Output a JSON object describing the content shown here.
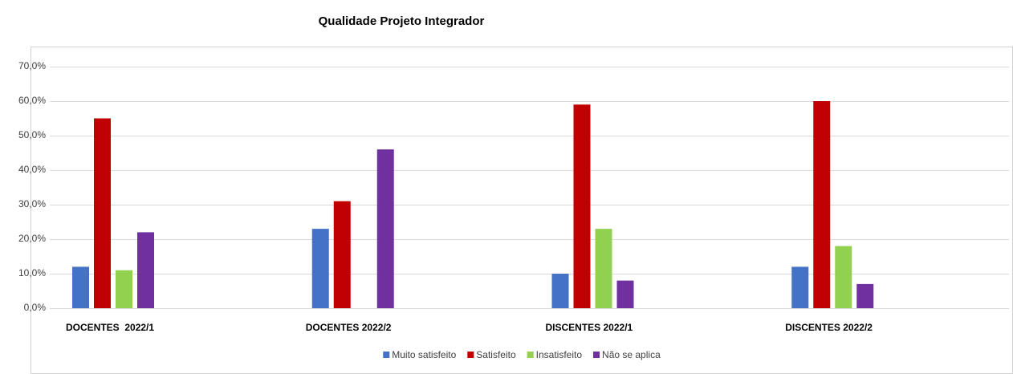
{
  "chart_data": {
    "type": "bar",
    "title": "Qualidade Projeto Integrador",
    "categories": [
      "DOCENTES  2022/1",
      "DOCENTES 2022/2",
      "DISCENTES 2022/1",
      "DISCENTES 2022/2"
    ],
    "series": [
      {
        "name": "Muito satisfeito",
        "color": "#4472c4",
        "values": [
          12,
          23,
          10,
          12
        ]
      },
      {
        "name": "Satisfeito",
        "color": "#c00000",
        "values": [
          55,
          31,
          59,
          60
        ]
      },
      {
        "name": "Insatisfeito",
        "color": "#92d050",
        "values": [
          11,
          0,
          23,
          18
        ]
      },
      {
        "name": "Não se aplica",
        "color": "#7030a0",
        "values": [
          22,
          46,
          8,
          7
        ]
      }
    ],
    "ylim": [
      0,
      70
    ],
    "yticks": [
      {
        "value": 0,
        "label": "0,0%"
      },
      {
        "value": 10,
        "label": "10,0%"
      },
      {
        "value": 20,
        "label": "20,0%"
      },
      {
        "value": 30,
        "label": "30,0%"
      },
      {
        "value": 40,
        "label": "40,0%"
      },
      {
        "value": 50,
        "label": "50,0%"
      },
      {
        "value": 60,
        "label": "60,0%"
      },
      {
        "value": 70,
        "label": "70,0%"
      }
    ],
    "grid": true,
    "legend": "bottom"
  }
}
